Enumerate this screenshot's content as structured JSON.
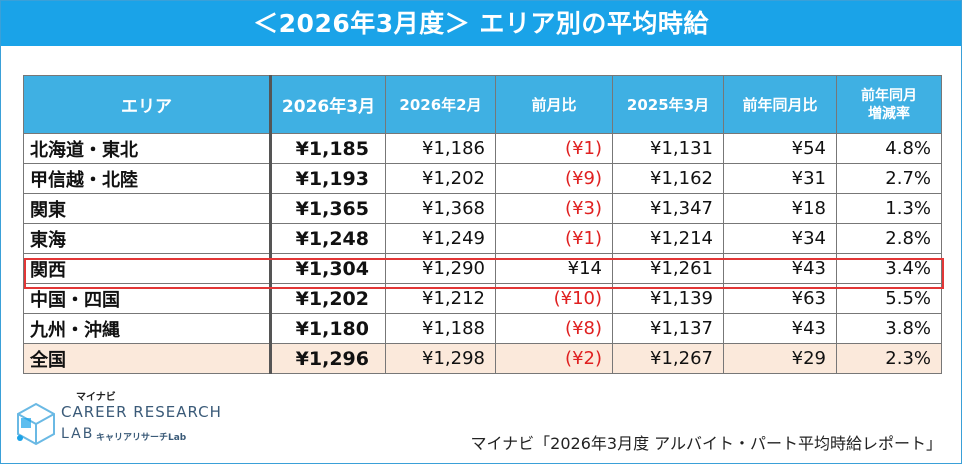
{
  "title": "＜2026年3月度＞ エリア別の平均時給",
  "table": {
    "headers": [
      "エリア",
      "2026年3月",
      "2026年2月",
      "前月比",
      "2025年3月",
      "前年同月比",
      "前年同月",
      "増減率"
    ],
    "rows": [
      {
        "area": "北海道・東北",
        "cur": "¥1,185",
        "prev": "¥1,186",
        "mom": "(¥1)",
        "ly": "¥1,131",
        "yoy": "¥54",
        "rate": "4.8%"
      },
      {
        "area": "甲信越・北陸",
        "cur": "¥1,193",
        "prev": "¥1,202",
        "mom": "(¥9)",
        "ly": "¥1,162",
        "yoy": "¥31",
        "rate": "2.7%"
      },
      {
        "area": "関東",
        "cur": "¥1,365",
        "prev": "¥1,368",
        "mom": "(¥3)",
        "ly": "¥1,347",
        "yoy": "¥18",
        "rate": "1.3%"
      },
      {
        "area": "東海",
        "cur": "¥1,248",
        "prev": "¥1,249",
        "mom": "(¥1)",
        "ly": "¥1,214",
        "yoy": "¥34",
        "rate": "2.8%"
      },
      {
        "area": "関西",
        "cur": "¥1,304",
        "prev": "¥1,290",
        "mom": "¥14",
        "ly": "¥1,261",
        "yoy": "¥43",
        "rate": "3.4%"
      },
      {
        "area": "中国・四国",
        "cur": "¥1,202",
        "prev": "¥1,212",
        "mom": "(¥10)",
        "ly": "¥1,139",
        "yoy": "¥63",
        "rate": "5.5%"
      },
      {
        "area": "九州・沖縄",
        "cur": "¥1,180",
        "prev": "¥1,188",
        "mom": "(¥8)",
        "ly": "¥1,137",
        "yoy": "¥43",
        "rate": "3.8%"
      },
      {
        "area": "全国",
        "cur": "¥1,296",
        "prev": "¥1,298",
        "mom": "(¥2)",
        "ly": "¥1,267",
        "yoy": "¥29",
        "rate": "2.3%"
      }
    ]
  },
  "logo": {
    "brand": "マイナビ",
    "line1": "CAREER RESEARCH",
    "line2": "LAB",
    "sub": "キャリアリサーチLab"
  },
  "source": "マイナビ「2026年3月度 アルバイト・パート平均時給レポート」",
  "colors": {
    "header_bg": "#3fb0e3",
    "banner_bg": "#1aa3e8",
    "negative": "#e02020",
    "highlight_border": "#e23636",
    "total_bg": "#fbe9db"
  }
}
